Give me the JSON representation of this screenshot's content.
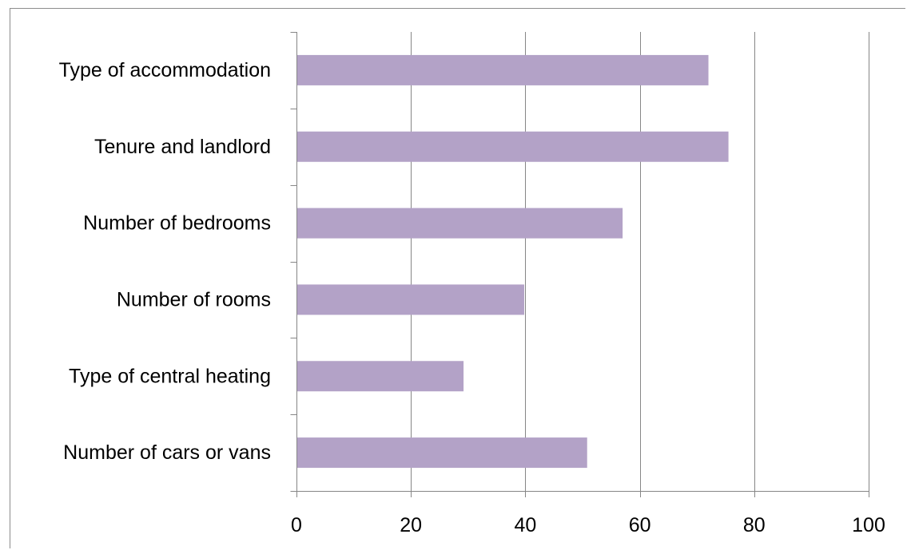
{
  "chart_data": {
    "type": "bar",
    "orientation": "horizontal",
    "categories": [
      "Type of accommodation",
      "Tenure and landlord",
      "Number of bedrooms",
      "Number of rooms",
      "Type of central heating",
      "Number of cars or vans"
    ],
    "values": [
      72,
      75.5,
      57,
      39.8,
      29.2,
      50.8
    ],
    "xlim": [
      0,
      100
    ],
    "x_ticks": [
      0,
      20,
      40,
      60,
      80,
      100
    ],
    "x_tick_labels": [
      "0",
      "20",
      "40",
      "60",
      "80",
      "100"
    ],
    "grid": "vertical",
    "legend": "none",
    "title": "",
    "xlabel": "",
    "ylabel": "",
    "bar_color": "#b3a2c7",
    "grid_color": "#868686"
  }
}
